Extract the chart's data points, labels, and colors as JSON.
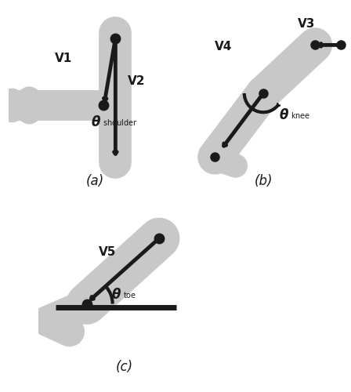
{
  "fig_width": 4.48,
  "fig_height": 5.0,
  "dpi": 100,
  "background": "#ffffff",
  "gray_color": "#c8c8c8",
  "black_color": "#1a1a1a",
  "label_a": "(a)",
  "label_b": "(b)",
  "label_c": "(c)"
}
